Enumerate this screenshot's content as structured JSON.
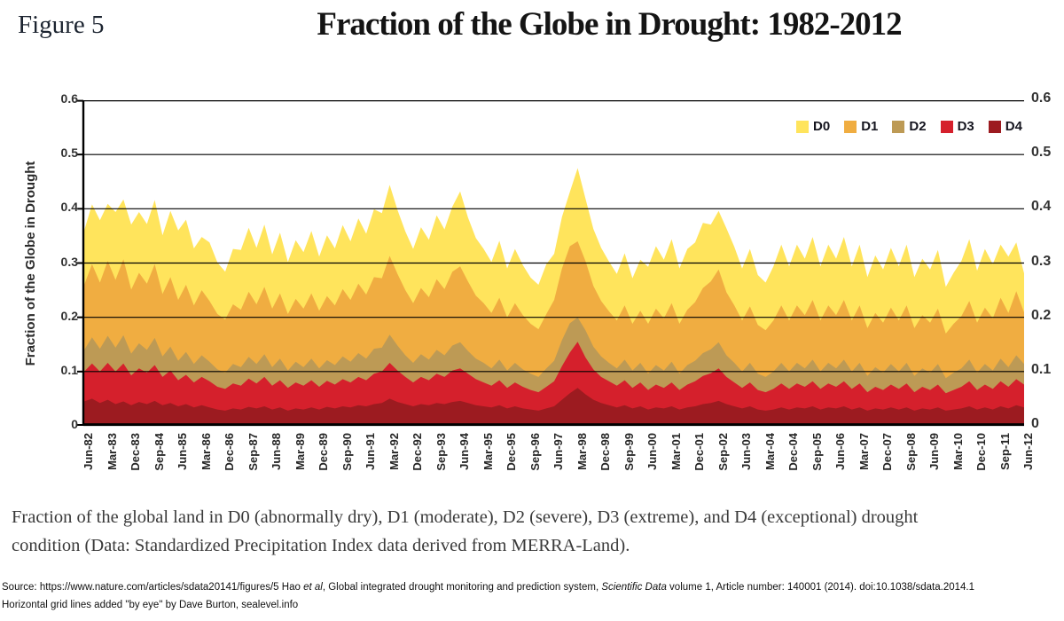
{
  "figure_label": "Figure 5",
  "title": "Fraction of the Globe in Drought: 1982-2012",
  "chart_data": {
    "type": "area",
    "stacked": true,
    "title": "Fraction of the Globe in Drought: 1982-2012",
    "ylabel": "Fraction of the Globe in Drought",
    "xlabel": "",
    "ylim": [
      0,
      0.6
    ],
    "ytick_labels": [
      "0",
      "0.1",
      "0.2",
      "0.3",
      "0.4",
      "0.5",
      "0.6"
    ],
    "grid": "horizontal black lines at 0.1 intervals, added by hand",
    "legend_position": "top-right inside plot",
    "x_start": "Jun-82",
    "x_end": "Jun-12",
    "x_step_months": 3,
    "xtick_labels": [
      "Jun-82",
      "Mar-83",
      "Dec-83",
      "Sep-84",
      "Jun-85",
      "Mar-86",
      "Dec-86",
      "Sep-87",
      "Jun-88",
      "Mar-89",
      "Dec-89",
      "Sep-90",
      "Jun-91",
      "Mar-92",
      "Dec-92",
      "Sep-93",
      "Jun-94",
      "Mar-95",
      "Dec-95",
      "Sep-96",
      "Jun-97",
      "Mar-98",
      "Dec-98",
      "Sep-99",
      "Jun-00",
      "Mar-01",
      "Dec-01",
      "Sep-02",
      "Jun-03",
      "Mar-04",
      "Dec-04",
      "Sep-05",
      "Jun-06",
      "Mar-07",
      "Dec-07",
      "Sep-08",
      "Jun-09",
      "Mar-10",
      "Dec-10",
      "Sep-11",
      "Jun-12"
    ],
    "stack_order_bottom_to_top": [
      "D4",
      "D3",
      "D2",
      "D1",
      "D0"
    ],
    "values_note": "estimated fraction (layer thickness) per drought category, quarterly Jun-1982 to Jun-2012",
    "series": [
      {
        "name": "D0",
        "meaning": "abnormally dry",
        "color": "#FFE45C",
        "values": [
          0.1,
          0.11,
          0.115,
          0.105,
          0.125,
          0.11,
          0.12,
          0.112,
          0.11,
          0.118,
          0.108,
          0.122,
          0.128,
          0.12,
          0.105,
          0.098,
          0.108,
          0.095,
          0.088,
          0.102,
          0.11,
          0.118,
          0.104,
          0.115,
          0.1,
          0.112,
          0.096,
          0.108,
          0.104,
          0.115,
          0.1,
          0.112,
          0.105,
          0.118,
          0.108,
          0.12,
          0.112,
          0.125,
          0.12,
          0.131,
          0.118,
          0.108,
          0.1,
          0.112,
          0.106,
          0.118,
          0.11,
          0.12,
          0.138,
          0.118,
          0.106,
          0.1,
          0.094,
          0.105,
          0.09,
          0.1,
          0.092,
          0.085,
          0.082,
          0.092,
          0.085,
          0.095,
          0.1,
          0.135,
          0.115,
          0.105,
          0.098,
          0.092,
          0.086,
          0.096,
          0.084,
          0.094,
          0.105,
          0.115,
          0.108,
          0.118,
          0.102,
          0.112,
          0.11,
          0.12,
          0.105,
          0.108,
          0.118,
          0.108,
          0.096,
          0.106,
          0.092,
          0.088,
          0.1,
          0.112,
          0.1,
          0.112,
          0.104,
          0.116,
          0.1,
          0.112,
          0.104,
          0.116,
          0.1,
          0.112,
          0.094,
          0.106,
          0.098,
          0.11,
          0.1,
          0.112,
          0.094,
          0.104,
          0.098,
          0.108,
          0.086,
          0.094,
          0.102,
          0.114,
          0.096,
          0.108,
          0.1,
          0.098,
          0.104,
          0.09,
          0.072
        ]
      },
      {
        "name": "D1",
        "meaning": "moderate",
        "color": "#F0AD41",
        "values": [
          0.12,
          0.135,
          0.122,
          0.138,
          0.125,
          0.14,
          0.118,
          0.13,
          0.122,
          0.136,
          0.115,
          0.128,
          0.112,
          0.124,
          0.108,
          0.12,
          0.112,
          0.102,
          0.098,
          0.11,
          0.106,
          0.12,
          0.11,
          0.124,
          0.108,
          0.12,
          0.104,
          0.116,
          0.108,
          0.12,
          0.106,
          0.118,
          0.11,
          0.124,
          0.114,
          0.128,
          0.118,
          0.132,
          0.128,
          0.145,
          0.132,
          0.12,
          0.11,
          0.122,
          0.115,
          0.13,
          0.122,
          0.136,
          0.14,
          0.128,
          0.116,
          0.11,
          0.102,
          0.114,
          0.098,
          0.11,
          0.1,
          0.092,
          0.088,
          0.1,
          0.112,
          0.132,
          0.142,
          0.14,
          0.128,
          0.112,
          0.102,
          0.095,
          0.088,
          0.1,
          0.086,
          0.096,
          0.092,
          0.104,
          0.096,
          0.108,
          0.092,
          0.102,
          0.108,
          0.12,
          0.125,
          0.134,
          0.116,
          0.106,
          0.094,
          0.104,
          0.09,
          0.086,
          0.094,
          0.106,
          0.094,
          0.106,
          0.098,
          0.11,
          0.094,
          0.106,
          0.098,
          0.11,
          0.094,
          0.106,
          0.088,
          0.1,
          0.092,
          0.104,
          0.094,
          0.106,
          0.088,
          0.098,
          0.092,
          0.102,
          0.082,
          0.09,
          0.096,
          0.108,
          0.092,
          0.104,
          0.096,
          0.112,
          0.1,
          0.118,
          0.095
        ]
      },
      {
        "name": "D2",
        "meaning": "severe",
        "color": "#BD9A55",
        "values": [
          0.04,
          0.048,
          0.042,
          0.05,
          0.044,
          0.052,
          0.04,
          0.046,
          0.042,
          0.05,
          0.038,
          0.044,
          0.036,
          0.042,
          0.034,
          0.04,
          0.036,
          0.032,
          0.03,
          0.036,
          0.034,
          0.04,
          0.036,
          0.042,
          0.034,
          0.04,
          0.032,
          0.038,
          0.034,
          0.04,
          0.034,
          0.038,
          0.036,
          0.042,
          0.038,
          0.044,
          0.04,
          0.046,
          0.044,
          0.052,
          0.046,
          0.04,
          0.036,
          0.042,
          0.038,
          0.044,
          0.04,
          0.046,
          0.048,
          0.042,
          0.038,
          0.036,
          0.032,
          0.038,
          0.032,
          0.036,
          0.032,
          0.03,
          0.028,
          0.034,
          0.038,
          0.048,
          0.054,
          0.045,
          0.05,
          0.042,
          0.038,
          0.034,
          0.032,
          0.038,
          0.032,
          0.036,
          0.03,
          0.036,
          0.032,
          0.038,
          0.03,
          0.036,
          0.038,
          0.042,
          0.044,
          0.048,
          0.04,
          0.036,
          0.03,
          0.036,
          0.03,
          0.028,
          0.032,
          0.038,
          0.032,
          0.038,
          0.034,
          0.04,
          0.032,
          0.038,
          0.034,
          0.04,
          0.032,
          0.038,
          0.03,
          0.036,
          0.032,
          0.038,
          0.032,
          0.038,
          0.03,
          0.034,
          0.032,
          0.038,
          0.028,
          0.032,
          0.034,
          0.04,
          0.032,
          0.038,
          0.034,
          0.042,
          0.036,
          0.044,
          0.038
        ]
      },
      {
        "name": "D3",
        "meaning": "extreme",
        "color": "#D5202C",
        "values": [
          0.055,
          0.065,
          0.058,
          0.068,
          0.06,
          0.07,
          0.055,
          0.062,
          0.058,
          0.066,
          0.052,
          0.06,
          0.048,
          0.054,
          0.046,
          0.052,
          0.048,
          0.042,
          0.04,
          0.046,
          0.044,
          0.052,
          0.046,
          0.054,
          0.044,
          0.05,
          0.042,
          0.048,
          0.044,
          0.05,
          0.042,
          0.048,
          0.044,
          0.05,
          0.046,
          0.052,
          0.048,
          0.056,
          0.058,
          0.066,
          0.058,
          0.05,
          0.044,
          0.05,
          0.046,
          0.054,
          0.05,
          0.058,
          0.06,
          0.054,
          0.048,
          0.044,
          0.04,
          0.046,
          0.038,
          0.044,
          0.04,
          0.036,
          0.034,
          0.04,
          0.046,
          0.062,
          0.075,
          0.085,
          0.068,
          0.056,
          0.048,
          0.044,
          0.04,
          0.046,
          0.038,
          0.044,
          0.036,
          0.042,
          0.038,
          0.044,
          0.036,
          0.042,
          0.046,
          0.052,
          0.055,
          0.06,
          0.05,
          0.044,
          0.038,
          0.044,
          0.036,
          0.034,
          0.038,
          0.044,
          0.038,
          0.044,
          0.04,
          0.046,
          0.038,
          0.044,
          0.04,
          0.046,
          0.038,
          0.044,
          0.034,
          0.04,
          0.036,
          0.042,
          0.038,
          0.044,
          0.034,
          0.04,
          0.036,
          0.042,
          0.032,
          0.036,
          0.04,
          0.046,
          0.036,
          0.042,
          0.038,
          0.046,
          0.04,
          0.048,
          0.042
        ]
      },
      {
        "name": "D4",
        "meaning": "exceptional",
        "color": "#9C1B20",
        "values": [
          0.045,
          0.05,
          0.042,
          0.048,
          0.04,
          0.045,
          0.038,
          0.044,
          0.04,
          0.046,
          0.038,
          0.042,
          0.036,
          0.04,
          0.034,
          0.038,
          0.034,
          0.03,
          0.028,
          0.032,
          0.03,
          0.035,
          0.032,
          0.036,
          0.03,
          0.034,
          0.028,
          0.032,
          0.03,
          0.034,
          0.03,
          0.035,
          0.032,
          0.036,
          0.034,
          0.038,
          0.036,
          0.04,
          0.042,
          0.05,
          0.044,
          0.04,
          0.036,
          0.04,
          0.038,
          0.042,
          0.04,
          0.044,
          0.046,
          0.042,
          0.038,
          0.036,
          0.034,
          0.038,
          0.032,
          0.036,
          0.032,
          0.03,
          0.028,
          0.032,
          0.036,
          0.048,
          0.06,
          0.07,
          0.058,
          0.048,
          0.042,
          0.038,
          0.034,
          0.038,
          0.032,
          0.036,
          0.03,
          0.034,
          0.032,
          0.036,
          0.03,
          0.034,
          0.036,
          0.04,
          0.042,
          0.046,
          0.04,
          0.036,
          0.032,
          0.036,
          0.03,
          0.028,
          0.03,
          0.034,
          0.03,
          0.034,
          0.032,
          0.036,
          0.03,
          0.034,
          0.032,
          0.036,
          0.03,
          0.034,
          0.028,
          0.032,
          0.03,
          0.034,
          0.03,
          0.034,
          0.028,
          0.032,
          0.03,
          0.034,
          0.028,
          0.03,
          0.032,
          0.036,
          0.03,
          0.034,
          0.03,
          0.036,
          0.032,
          0.038,
          0.034
        ]
      }
    ]
  },
  "caption": {
    "line1": "Fraction of the global land in D0 (abnormally dry), D1 (moderate), D2 (severe), D3 (extreme), and D4 (exceptional) drought",
    "line2": "condition (Data: Standardized Precipitation Index data derived from MERRA-Land)."
  },
  "source": {
    "line1_parts": [
      {
        "text": "Source: https://www.nature.com/articles/sdata20141/figures/5  Hao ",
        "italic": false
      },
      {
        "text": "et al",
        "italic": true
      },
      {
        "text": ", Global integrated drought monitoring and prediction system, ",
        "italic": false
      },
      {
        "text": "Scientific Data",
        "italic": true
      },
      {
        "text": " volume 1, Article number: 140001 (2014).  doi:10.1038/sdata.2014.1",
        "italic": false
      }
    ],
    "line2": "Horizontal grid lines added \"by eye\" by Dave Burton, sealevel.info"
  }
}
